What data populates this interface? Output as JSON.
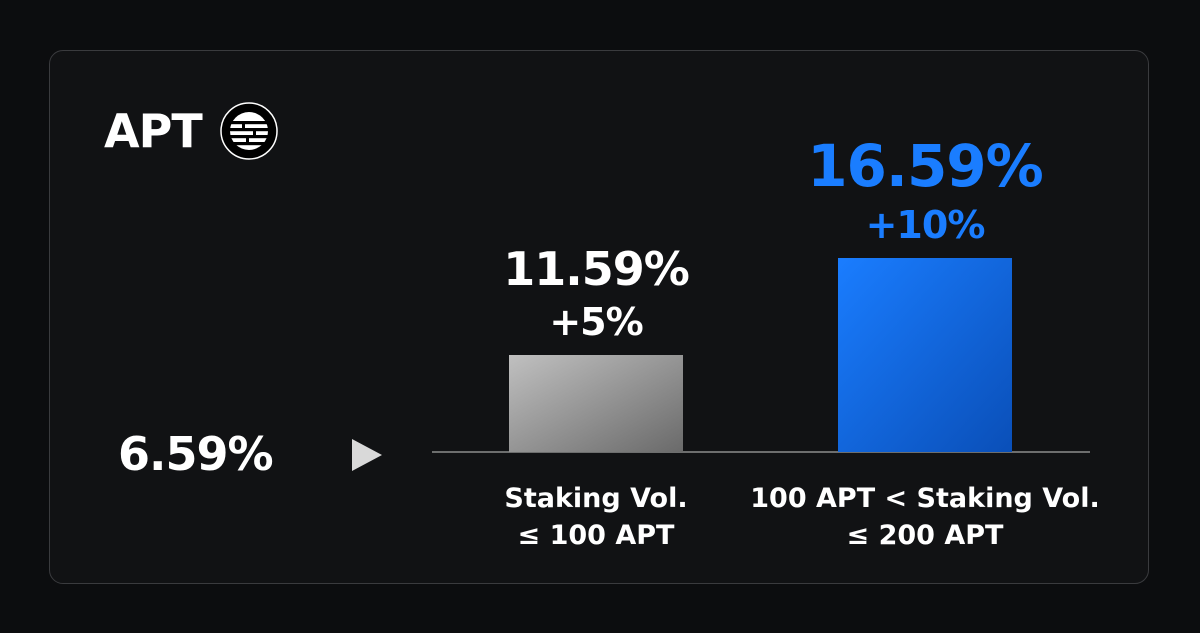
{
  "brand": {
    "name": "APT",
    "logo_icon": "aptos-logo-icon"
  },
  "base_rate": "6.59%",
  "colors": {
    "background": "#0c0d0f",
    "card": "#111214",
    "accent_blue": "#1a7dff",
    "bar_grey": "#a8a8a8",
    "white": "#ffffff"
  },
  "chart_data": {
    "type": "bar",
    "categories": [
      [
        "Staking Vol.",
        "≤ 100 APT"
      ],
      [
        "100 APT < Staking Vol.",
        "≤ 200 APT"
      ]
    ],
    "values": [
      5,
      10
    ],
    "rate_labels": [
      "11.59%",
      "16.59%"
    ],
    "bonus_labels": [
      "+5%",
      "+10%"
    ],
    "ylim": [
      0,
      10
    ],
    "grid": false,
    "legend": "none"
  }
}
